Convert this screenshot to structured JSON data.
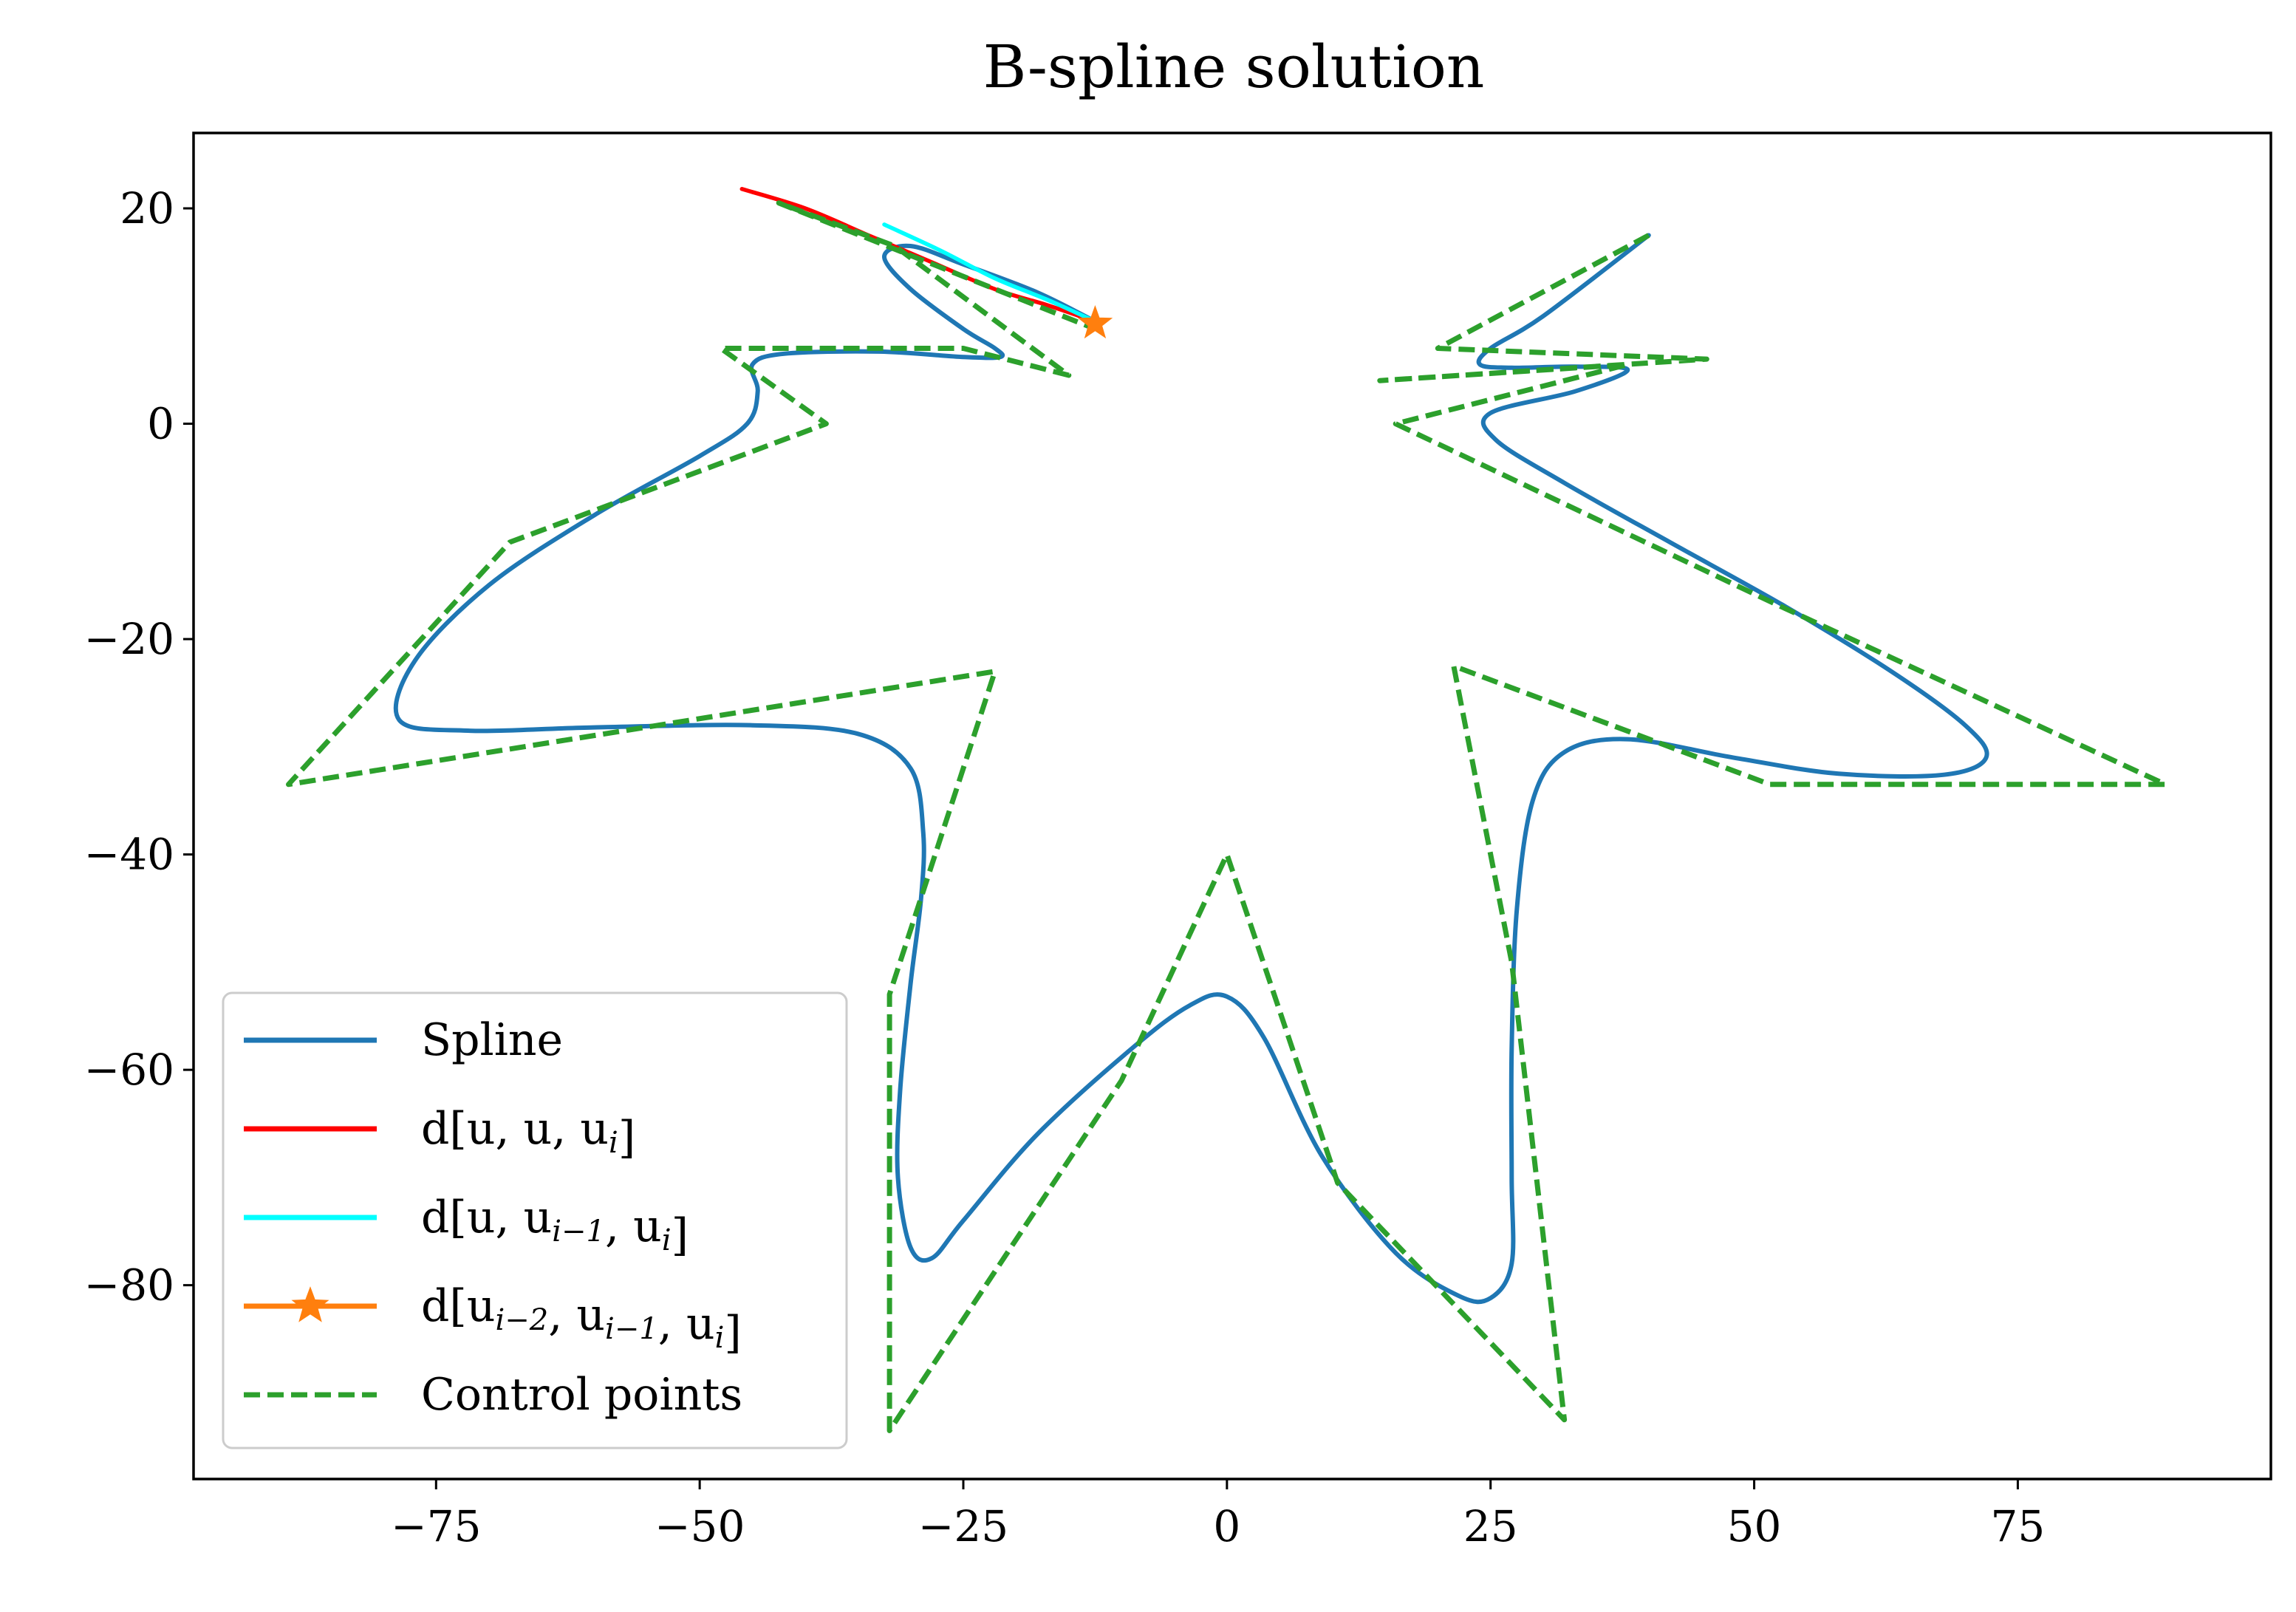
{
  "chart_data": {
    "type": "line",
    "title": "B-spline solution",
    "xlabel": "",
    "ylabel": "",
    "xlim": [
      -98,
      99
    ],
    "ylim": [
      -98,
      27
    ],
    "xticks": [
      -75,
      -50,
      -25,
      0,
      25,
      50,
      75
    ],
    "yticks": [
      20,
      0,
      -20,
      -40,
      -60,
      -80
    ],
    "xtick_labels": [
      "−75",
      "−50",
      "−25",
      "0",
      "25",
      "50",
      "75"
    ],
    "ytick_labels": [
      "20",
      "0",
      "−20",
      "−40",
      "−60",
      "−80"
    ],
    "grid": false,
    "legend_position": "lower-left",
    "colors": {
      "spline": "#1f77b4",
      "d_u_u_ui": "#ff0000",
      "d_u_ui1_ui": "#00ffff",
      "d_ui2_ui1_ui": "#ff7f0e",
      "control": "#2ca02c"
    },
    "legend": [
      {
        "key": "spline",
        "text": "Spline"
      },
      {
        "key": "d_u_u_ui",
        "pre": "d[u, u, u",
        "sub": "i",
        "post": "]"
      },
      {
        "key": "d_u_ui1_ui",
        "pre": "d[u, u",
        "sub": "i−1",
        "mid": ", u",
        "sub2": "i",
        "post": "]"
      },
      {
        "key": "d_ui2_ui1_ui",
        "pre": "d[u",
        "sub": "i−2",
        "mid": ", u",
        "sub2": "i−1",
        "mid2": ", u",
        "sub3": "i",
        "post": "]"
      },
      {
        "key": "control",
        "text": "Control points"
      }
    ],
    "series": [
      {
        "name": "Spline",
        "key": "spline",
        "points": [
          [
            40.0,
            17.5
          ],
          [
            30.0,
            10.0
          ],
          [
            25.0,
            7.0
          ],
          [
            24.0,
            5.5
          ],
          [
            27.0,
            5.2
          ],
          [
            33.0,
            5.3
          ],
          [
            38.0,
            5.0
          ],
          [
            33.0,
            3.0
          ],
          [
            25.0,
            1.0
          ],
          [
            25.5,
            -1.5
          ],
          [
            32.0,
            -5.5
          ],
          [
            42.0,
            -11.0
          ],
          [
            53.0,
            -17.0
          ],
          [
            63.0,
            -23.0
          ],
          [
            70.0,
            -28.0
          ],
          [
            72.0,
            -31.0
          ],
          [
            68.0,
            -32.6
          ],
          [
            58.0,
            -32.5
          ],
          [
            48.0,
            -31.0
          ],
          [
            38.0,
            -29.3
          ],
          [
            32.0,
            -30.5
          ],
          [
            29.0,
            -35.0
          ],
          [
            27.5,
            -45.0
          ],
          [
            27.0,
            -58.0
          ],
          [
            27.0,
            -70.0
          ],
          [
            27.0,
            -78.0
          ],
          [
            25.0,
            -81.2
          ],
          [
            22.0,
            -81.0
          ],
          [
            16.0,
            -77.0
          ],
          [
            9.0,
            -68.0
          ],
          [
            3.5,
            -57.0
          ],
          [
            0.0,
            -53.2
          ],
          [
            -3.5,
            -54.0
          ],
          [
            -9.0,
            -58.0
          ],
          [
            -18.0,
            -66.0
          ],
          [
            -25.0,
            -74.0
          ],
          [
            -28.0,
            -77.5
          ],
          [
            -30.0,
            -76.5
          ],
          [
            -31.2,
            -70.0
          ],
          [
            -31.0,
            -62.0
          ],
          [
            -30.0,
            -52.0
          ],
          [
            -29.0,
            -44.0
          ],
          [
            -28.8,
            -38.0
          ],
          [
            -30.0,
            -32.0
          ],
          [
            -35.0,
            -28.8
          ],
          [
            -45.0,
            -28.0
          ],
          [
            -60.0,
            -28.2
          ],
          [
            -72.0,
            -28.5
          ],
          [
            -78.5,
            -27.5
          ],
          [
            -77.0,
            -22.0
          ],
          [
            -70.0,
            -15.0
          ],
          [
            -60.0,
            -8.5
          ],
          [
            -50.0,
            -3.0
          ],
          [
            -45.5,
            0.0
          ],
          [
            -44.5,
            3.0
          ],
          [
            -45.0,
            5.5
          ],
          [
            -42.0,
            6.5
          ],
          [
            -33.0,
            6.7
          ],
          [
            -25.0,
            6.2
          ],
          [
            -21.5,
            6.2
          ],
          [
            -22.0,
            7.0
          ],
          [
            -25.0,
            8.8
          ],
          [
            -30.0,
            12.5
          ],
          [
            -32.5,
            15.5
          ],
          [
            -30.0,
            16.5
          ],
          [
            -25.0,
            14.8
          ],
          [
            -18.0,
            12.2
          ],
          [
            -12.5,
            9.5
          ]
        ]
      },
      {
        "name": "d[u, u, u_i]",
        "key": "d_u_u_ui",
        "points": [
          [
            -46.0,
            21.8
          ],
          [
            -40.0,
            20.0
          ],
          [
            -34.0,
            17.5
          ],
          [
            -28.0,
            15.0
          ],
          [
            -22.0,
            12.5
          ],
          [
            -17.0,
            11.0
          ],
          [
            -12.5,
            9.5
          ]
        ]
      },
      {
        "name": "d[u, u_{i-1}, u_i]",
        "key": "d_u_ui1_ui",
        "points": [
          [
            -32.5,
            18.5
          ],
          [
            -27.0,
            16.0
          ],
          [
            -22.0,
            13.5
          ],
          [
            -17.0,
            11.5
          ],
          [
            -12.5,
            9.5
          ]
        ]
      },
      {
        "name": "d[u_{i-2}, u_{i-1}, u_i]",
        "key": "d_ui2_ui1_ui",
        "points": [
          [
            -12.5,
            9.3
          ]
        ]
      },
      {
        "name": "Control points",
        "key": "control",
        "points": [
          [
            40.0,
            17.5
          ],
          [
            20.0,
            7.0
          ],
          [
            45.5,
            6.0
          ],
          [
            14.5,
            4.0
          ],
          [
            38.0,
            5.5
          ],
          [
            16.0,
            0.0
          ],
          [
            51.5,
            -16.5
          ],
          [
            89.0,
            -33.5
          ],
          [
            51.5,
            -33.5
          ],
          [
            21.5,
            -22.5
          ],
          [
            27.0,
            -50.0
          ],
          [
            32.0,
            -92.5
          ],
          [
            10.5,
            -70.5
          ],
          [
            0.0,
            -40.0
          ],
          [
            -10.0,
            -61.0
          ],
          [
            -32.0,
            -93.5
          ],
          [
            -32.0,
            -53.0
          ],
          [
            -22.0,
            -23.0
          ],
          [
            -89.0,
            -33.5
          ],
          [
            -68.0,
            -11.0
          ],
          [
            -38.0,
            0.0
          ],
          [
            -48.0,
            7.0
          ],
          [
            -25.0,
            7.0
          ],
          [
            -15.0,
            4.5
          ],
          [
            -31.5,
            16.5
          ],
          [
            -42.5,
            20.5
          ],
          [
            -13.0,
            9.0
          ]
        ]
      }
    ]
  }
}
